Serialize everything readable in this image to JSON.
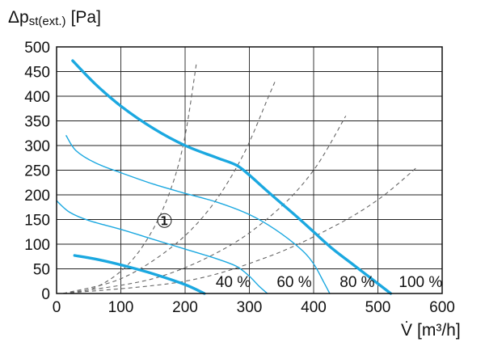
{
  "chart_data": {
    "type": "line",
    "ylabel_main": "Δp",
    "ylabel_sub": "st(ext.)",
    "ylabel_unit": "[Pa]",
    "xlabel_main": "V̇",
    "xlabel_unit": "[m³/h]",
    "xlim": [
      0,
      600
    ],
    "ylim": [
      0,
      500
    ],
    "xticks": [
      "0",
      "100",
      "200",
      "300",
      "400",
      "500",
      "600"
    ],
    "yticks": [
      "0",
      "50",
      "100",
      "150",
      "200",
      "250",
      "300",
      "350",
      "400",
      "450",
      "500"
    ],
    "grid": true,
    "series": [
      {
        "name": "100 %",
        "style": "thick",
        "x": [
          25,
          60,
          100,
          150,
          200,
          250,
          280,
          300,
          330,
          370,
          400,
          430,
          460,
          490,
          520
        ],
        "y": [
          472,
          425,
          380,
          335,
          300,
          275,
          260,
          240,
          205,
          160,
          125,
          90,
          60,
          30,
          0
        ]
      },
      {
        "name": "80 %",
        "style": "thin",
        "x": [
          15,
          30,
          60,
          100,
          150,
          200,
          250,
          300,
          340,
          380,
          400,
          415,
          425
        ],
        "y": [
          320,
          290,
          265,
          245,
          222,
          203,
          185,
          160,
          130,
          90,
          60,
          25,
          0
        ]
      },
      {
        "name": "60 %",
        "style": "thin",
        "x": [
          0,
          20,
          50,
          100,
          150,
          200,
          250,
          280,
          300,
          315,
          328
        ],
        "y": [
          188,
          165,
          148,
          130,
          110,
          90,
          70,
          55,
          35,
          15,
          0
        ]
      },
      {
        "name": "40 %",
        "style": "thick",
        "x": [
          28,
          60,
          100,
          150,
          200,
          230
        ],
        "y": [
          77,
          70,
          58,
          40,
          18,
          0
        ]
      }
    ],
    "system_curves": {
      "style": "dashed",
      "curves": [
        {
          "x": [
            10,
            60,
            110,
            150,
            180,
            200,
            218
          ],
          "y": [
            0,
            12,
            57,
            130,
            220,
            320,
            470
          ]
        },
        {
          "x": [
            10,
            100,
            180,
            240,
            290,
            330,
            340
          ],
          "y": [
            0,
            30,
            95,
            175,
            280,
            400,
            430
          ]
        },
        {
          "x": [
            10,
            150,
            260,
            340,
            400,
            450
          ],
          "y": [
            0,
            30,
            90,
            165,
            250,
            360
          ]
        },
        {
          "x": [
            10,
            200,
            330,
            430,
            500,
            560
          ],
          "y": [
            0,
            25,
            75,
            135,
            190,
            255
          ]
        }
      ]
    },
    "annotations": [
      {
        "text": "40 %",
        "x": 235,
        "y": 0
      },
      {
        "text": "60 %",
        "x": 330,
        "y": 0
      },
      {
        "text": "80 %",
        "x": 428,
        "y": 0
      },
      {
        "text": "100 %",
        "x": 520,
        "y": 0
      },
      {
        "text": "①",
        "x": 162,
        "y": 150
      }
    ],
    "colors": {
      "curve": "#1ba8e0",
      "dash": "#666666",
      "grid": "#222222",
      "axis": "#111111"
    }
  }
}
